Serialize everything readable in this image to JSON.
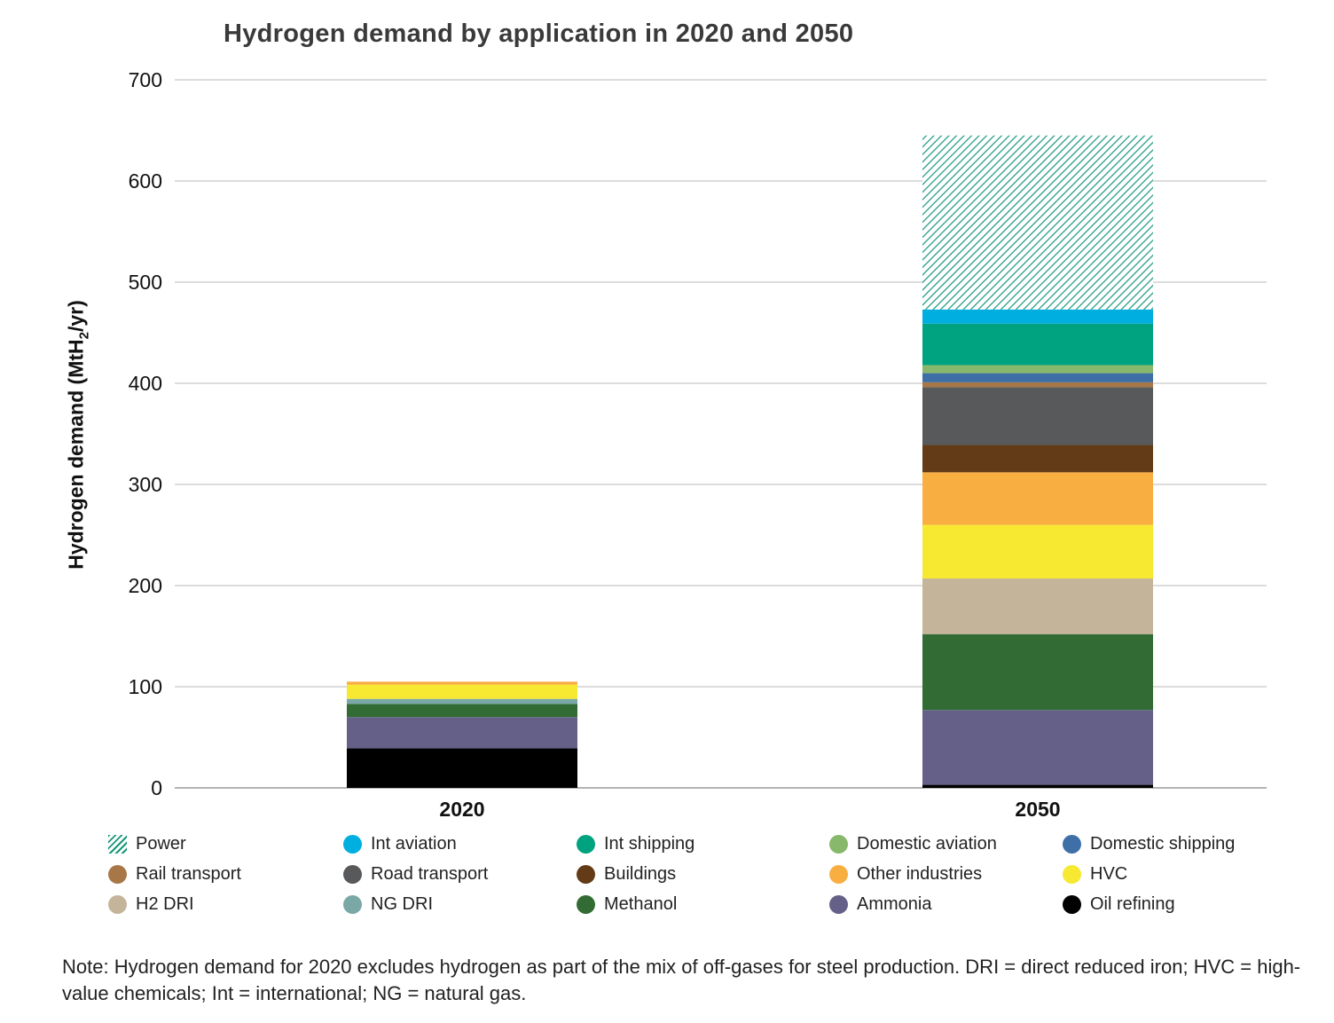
{
  "chart_data": {
    "type": "bar",
    "stacked": true,
    "title": "Hydrogen demand by application in 2020 and 2050",
    "ylabel": "Hydrogen demand (MtH",
    "ylabel_sub": "2",
    "ylabel_suffix": "/yr)",
    "ylim": [
      0,
      700
    ],
    "yticks": [
      0,
      100,
      200,
      300,
      400,
      500,
      600,
      700
    ],
    "grid": true,
    "legend_position": "bottom",
    "categories": [
      "2020",
      "2050"
    ],
    "series": [
      {
        "name": "Oil refining",
        "color": "#000000",
        "values": [
          39,
          3
        ]
      },
      {
        "name": "Ammonia",
        "color": "#646087",
        "values": [
          31,
          74
        ]
      },
      {
        "name": "Methanol",
        "color": "#336b34",
        "values": [
          13,
          75
        ]
      },
      {
        "name": "NG DRI",
        "color": "#7aa8a7",
        "values": [
          5,
          0
        ]
      },
      {
        "name": "H2 DRI",
        "color": "#c4b59a",
        "values": [
          0,
          55
        ]
      },
      {
        "name": "HVC",
        "color": "#f7e931",
        "values": [
          14,
          53
        ]
      },
      {
        "name": "Other industries",
        "color": "#f9ae42",
        "values": [
          3,
          52
        ]
      },
      {
        "name": "Buildings",
        "color": "#633b16",
        "values": [
          0,
          27
        ]
      },
      {
        "name": "Road transport",
        "color": "#58595b",
        "values": [
          0,
          57
        ]
      },
      {
        "name": "Rail transport",
        "color": "#a77748",
        "values": [
          0,
          5
        ]
      },
      {
        "name": "Domestic shipping",
        "color": "#3e6fa7",
        "values": [
          0,
          9
        ]
      },
      {
        "name": "Domestic aviation",
        "color": "#87b86b",
        "values": [
          0,
          8
        ]
      },
      {
        "name": "Int shipping",
        "color": "#00a37f",
        "values": [
          0,
          41
        ]
      },
      {
        "name": "Int aviation",
        "color": "#00aee0",
        "values": [
          0,
          14
        ]
      },
      {
        "name": "Power",
        "color": "#17977a",
        "pattern": "hatch",
        "values": [
          0,
          172
        ]
      }
    ]
  },
  "legend_order": [
    "Power",
    "Int aviation",
    "Int shipping",
    "Domestic aviation",
    "Domestic shipping",
    "Rail transport",
    "Road transport",
    "Buildings",
    "Other industries",
    "HVC",
    "H2 DRI",
    "NG DRI",
    "Methanol",
    "Ammonia",
    "Oil refining"
  ],
  "note": "Note: Hydrogen demand for 2020 excludes hydrogen as part of the mix of off-gases for steel production. DRI = direct reduced iron; HVC = high-value chemicals; Int = international; NG = natural gas."
}
